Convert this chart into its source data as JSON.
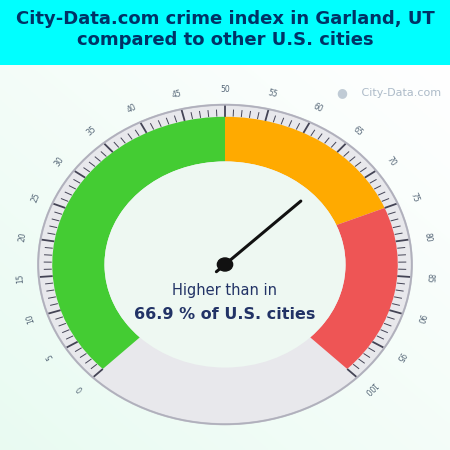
{
  "title": "City-Data.com crime index in Garland, UT\ncompared to other U.S. cities",
  "title_color": "#003366",
  "title_fontsize": 13.0,
  "title_bg": "#00FFFF",
  "gauge_bg_top": "#d8f0e8",
  "gauge_bg_bottom": "#e8f8f0",
  "center_text_line1": "Higher than in",
  "center_text_line2": "66.9 % of U.S. cities",
  "needle_value": 66.9,
  "value_min": 0,
  "value_max": 100,
  "green_range": [
    0,
    50
  ],
  "orange_range": [
    50,
    75
  ],
  "red_range": [
    75,
    100
  ],
  "green_color": "#44cc33",
  "orange_color": "#ffaa00",
  "red_color": "#ee5555",
  "R_outer_gray": 0.93,
  "R_color_out": 0.86,
  "R_color_in": 0.6,
  "tick_label_color": "#556677",
  "watermark": " City-Data.com"
}
